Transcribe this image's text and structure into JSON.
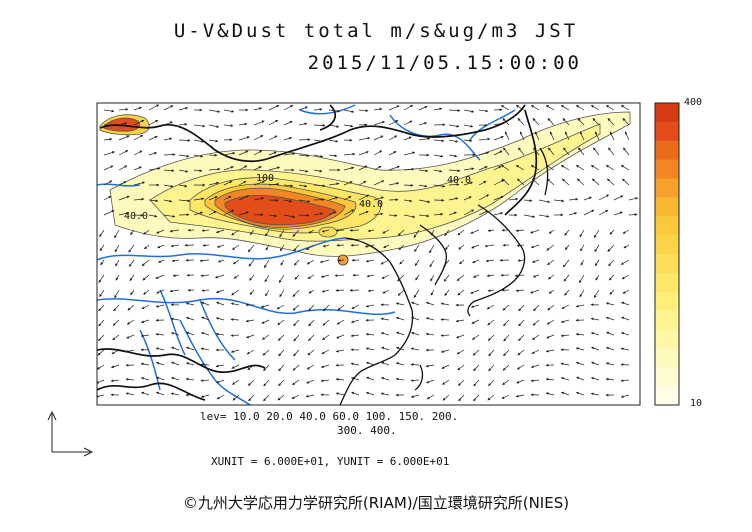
{
  "title": {
    "line1": "U-V&Dust total m/s&ug/m3 JST",
    "line2": "2015/11/05.15:00:00"
  },
  "colorbar": {
    "max_label": "400",
    "min_label": "10",
    "colors": [
      "#d53c16",
      "#e24d19",
      "#ec6a1c",
      "#f28623",
      "#f6a22a",
      "#f7b832",
      "#f9c93b",
      "#fad446",
      "#fbde55",
      "#fce766",
      "#fdef7a",
      "#fdf48f",
      "#fef7a6",
      "#fef9bd",
      "#fefbd2",
      "#fffde6"
    ]
  },
  "map": {
    "contour_labels": [
      "100",
      "40.0",
      "40.0",
      "40.0"
    ]
  },
  "legend": {
    "lev_line1": "lev= 10.0 20.0 40.0 60.0 100. 150. 200.",
    "lev_line2": "300. 400.",
    "units": "XUNIT = 6.000E+01, YUNIT = 6.000E+01"
  },
  "credit": "©九州大学応用力学研究所(RIAM)/国立環境研究所(NIES)"
}
